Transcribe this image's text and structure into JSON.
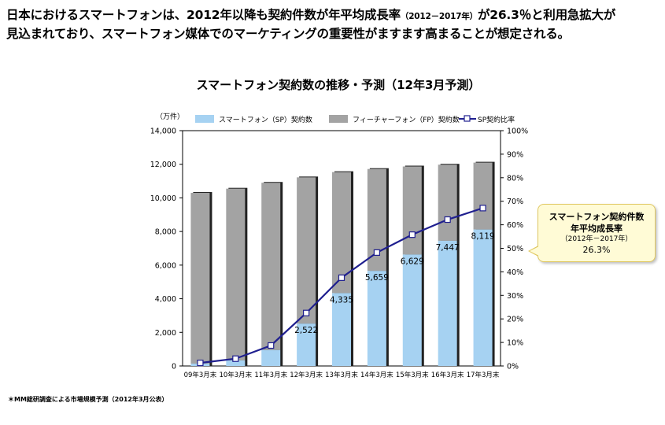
{
  "headline": {
    "line1_a": "日本におけるスマートフォンは、2012年以降も契約件数が年平均成長率",
    "line1_small": "（2012－2017年）",
    "line1_b": "が26.3％と利用急拡大が",
    "line2": "見込まれており、スマートフォン媒体でのマーケティングの重要性がますます高まることが想定される。"
  },
  "callout": {
    "line1": "スマートフォン契約件数",
    "line2": "年平均成長率",
    "line3": "（2012年－2017年）",
    "line4": "26.3%"
  },
  "footnote": "＊MM総研調査による市場規模予測（2012年3月公表）",
  "colors": {
    "sp": "#a6d2f2",
    "fp": "#a3a3a3",
    "line": "#1f1f8f",
    "marker_fill": "#ffffff"
  },
  "chart_data": {
    "type": "bar",
    "stacked": true,
    "title": "スマートフォン契約数の推移・予測（12年3月予測）",
    "ylabel": "（万件）",
    "categories": [
      "09年3月末",
      "10年3月末",
      "11年3月末",
      "12年3月末",
      "13年3月末",
      "14年3月末",
      "15年3月末",
      "16年3月末",
      "17年3月末"
    ],
    "ylim": [
      0,
      14000
    ],
    "yticks": [
      "0",
      "2,000",
      "4,000",
      "6,000",
      "8,000",
      "10,000",
      "12,000",
      "14,000"
    ],
    "y2lim": [
      0,
      100
    ],
    "y2ticks": [
      "0%",
      "10%",
      "20%",
      "30%",
      "40%",
      "50%",
      "60%",
      "70%",
      "80%",
      "90%",
      "100%"
    ],
    "legend_position": "top",
    "grid": false,
    "series": [
      {
        "name": "スマートフォン（SP）契約数",
        "kind": "bar",
        "values": [
          140,
          330,
          950,
          2522,
          4335,
          5659,
          6629,
          7447,
          8119
        ],
        "labels": [
          "",
          "",
          "",
          "2,522",
          "4,335",
          "5,659",
          "6,629",
          "7,447",
          "8,119"
        ]
      },
      {
        "name": "フィーチャーフォン（FP）契約数",
        "kind": "bar",
        "values": [
          10160,
          10220,
          9950,
          8700,
          7200,
          6060,
          5240,
          4530,
          3980
        ]
      },
      {
        "name": "SP契約比率",
        "kind": "line",
        "axis": "right",
        "values": [
          1.3,
          3.1,
          8.7,
          22.5,
          37.5,
          48.2,
          55.8,
          62.2,
          67.1
        ]
      }
    ]
  }
}
